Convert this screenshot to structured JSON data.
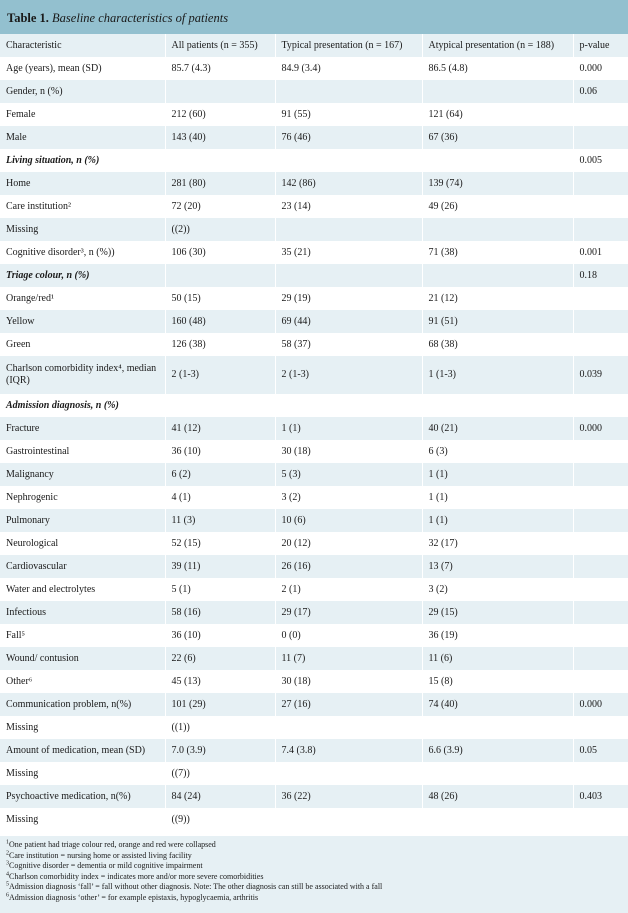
{
  "title": {
    "number": "Table 1.",
    "caption": "Baseline characteristics of patients"
  },
  "headers": [
    "Characteristic",
    "All patients (n = 355)",
    "Typical presentation (n = 167)",
    "Atypical presentation (n = 188)",
    "p-value"
  ],
  "rows": [
    {
      "cells": [
        "Age (years), mean (SD)",
        "85.7 (4.3)",
        "84.9 (3.4)",
        "86.5 (4.8)",
        "0.000"
      ]
    },
    {
      "cells": [
        "Gender, n (%)",
        "",
        "",
        "",
        "0.06"
      ]
    },
    {
      "cells": [
        "Female",
        "212 (60)",
        "91 (55)",
        "121 (64)",
        ""
      ]
    },
    {
      "cells": [
        "Male",
        "143 (40)",
        "76 (46)",
        "67 (36)",
        ""
      ]
    },
    {
      "cells": [
        "Living situation, n (%)",
        "",
        "",
        "",
        "0.005"
      ],
      "section": true
    },
    {
      "cells": [
        "Home",
        "281 (80)",
        "142 (86)",
        "139 (74)",
        ""
      ]
    },
    {
      "cells": [
        "Care institution²",
        "72 (20)",
        "23 (14)",
        "49 (26)",
        ""
      ]
    },
    {
      "cells": [
        "Missing",
        "((2))",
        "",
        "",
        ""
      ]
    },
    {
      "cells": [
        "Cognitive disorder³, n (%))",
        "106 (30)",
        "35 (21)",
        "71 (38)",
        "0.001"
      ]
    },
    {
      "cells": [
        "Triage colour, n (%)",
        "",
        "",
        "",
        "0.18"
      ],
      "section": true
    },
    {
      "cells": [
        "Orange/red¹",
        "50 (15)",
        "29 (19)",
        "21 (12)",
        ""
      ]
    },
    {
      "cells": [
        "Yellow",
        "160 (48)",
        "69 (44)",
        "91 (51)",
        ""
      ]
    },
    {
      "cells": [
        "Green",
        "126 (38)",
        "58 (37)",
        "68 (38)",
        ""
      ]
    },
    {
      "cells": [
        "Charlson comorbidity index⁴, median (IQR)",
        "2 (1-3)",
        "2 (1-3)",
        "1 (1-3)",
        "0.039"
      ],
      "tall": true
    },
    {
      "cells": [
        "Admission diagnosis, n (%)",
        "",
        "",
        "",
        ""
      ],
      "section": true
    },
    {
      "cells": [
        "Fracture",
        "41 (12)",
        "1 (1)",
        "40 (21)",
        "0.000"
      ]
    },
    {
      "cells": [
        "Gastrointestinal",
        "36 (10)",
        "30 (18)",
        "6 (3)",
        ""
      ]
    },
    {
      "cells": [
        "Malignancy",
        "6 (2)",
        "5 (3)",
        "1 (1)",
        ""
      ]
    },
    {
      "cells": [
        "Nephrogenic",
        "4 (1)",
        "3 (2)",
        "1 (1)",
        ""
      ]
    },
    {
      "cells": [
        "Pulmonary",
        "11 (3)",
        "10 (6)",
        "1 (1)",
        ""
      ]
    },
    {
      "cells": [
        "Neurological",
        "52 (15)",
        "20 (12)",
        "32 (17)",
        ""
      ]
    },
    {
      "cells": [
        "Cardiovascular",
        "39 (11)",
        "26 (16)",
        "13 (7)",
        ""
      ]
    },
    {
      "cells": [
        "Water and electrolytes",
        "5 (1)",
        "2 (1)",
        "3 (2)",
        ""
      ]
    },
    {
      "cells": [
        "Infectious",
        "58 (16)",
        "29 (17)",
        "29 (15)",
        ""
      ]
    },
    {
      "cells": [
        "Fall⁵",
        "36 (10)",
        "0 (0)",
        "36 (19)",
        ""
      ]
    },
    {
      "cells": [
        "Wound/ contusion",
        "22 (6)",
        "11 (7)",
        "11 (6)",
        ""
      ]
    },
    {
      "cells": [
        "Other⁶",
        "45 (13)",
        "30 (18)",
        "15 (8)",
        ""
      ]
    },
    {
      "cells": [
        "Communication problem, n(%)",
        "101 (29)",
        "27 (16)",
        "74 (40)",
        "0.000"
      ]
    },
    {
      "cells": [
        "Missing",
        "((1))",
        "",
        "",
        ""
      ]
    },
    {
      "cells": [
        "Amount of medication, mean (SD)",
        "7.0 (3.9)",
        "7.4 (3.8)",
        "6.6 (3.9)",
        "0.05"
      ]
    },
    {
      "cells": [
        "Missing",
        "((7))",
        "",
        "",
        ""
      ]
    },
    {
      "cells": [
        "Psychoactive medication, n(%)",
        "84 (24)",
        "36 (22)",
        "48 (26)",
        "0.403"
      ]
    },
    {
      "cells": [
        "Missing",
        "((9))",
        "",
        "",
        ""
      ]
    }
  ],
  "footnotes": [
    {
      "mark": "1",
      "text": "One patient had triage colour red, orange and red were collapsed"
    },
    {
      "mark": "2",
      "text": "Care institution = nursing home or assisted living facility"
    },
    {
      "mark": "3",
      "text": "Cognitive disorder = dementia or mild cognitive impairment"
    },
    {
      "mark": "4",
      "text": "Charlson comorbidity index = indicates more and/or more severe comorbidities"
    },
    {
      "mark": "5",
      "text": "Admission diagnosis ‘fall’ = fall without other diagnosis. Note: The other diagnosis can still be associated with a fall"
    },
    {
      "mark": "6",
      "text": "Admission diagnosis ‘other’ = for example epistaxis, hypoglycaemia, arthritis"
    }
  ],
  "colors": {
    "title_bg": "#93c0cf",
    "band_bg": "#e6f0f4",
    "text": "#1a1a1a"
  }
}
